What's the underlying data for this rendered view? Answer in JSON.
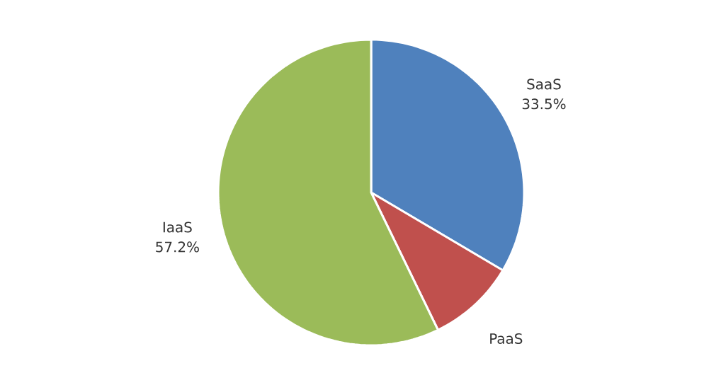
{
  "chart_data": {
    "type": "pie",
    "categories": [
      "SaaS",
      "PaaS",
      "IaaS"
    ],
    "values": [
      33.5,
      9.3,
      57.2
    ],
    "colors": [
      "#4f81bd",
      "#c0504d",
      "#9bbb59"
    ],
    "value_labels": [
      "33.5%",
      null,
      "57.2%"
    ]
  }
}
